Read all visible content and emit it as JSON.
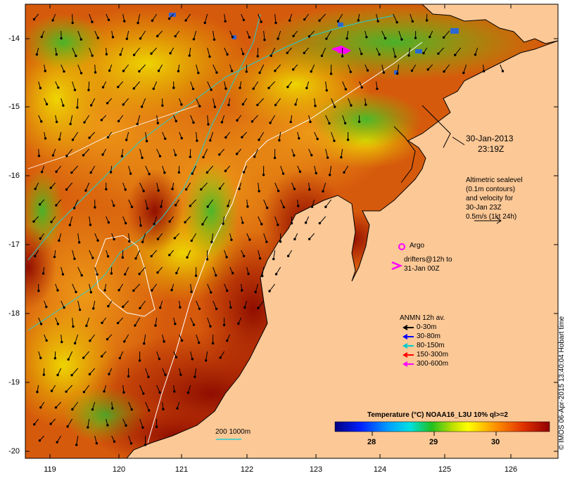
{
  "map": {
    "date": "30-Jan-2013",
    "time": "23:19Z",
    "altimetry_note": [
      "Altimetric sealevel",
      "(0.1m contours)",
      "and velocity for",
      "30-Jan 23Z",
      "0.5m/s (1kt 24h)"
    ],
    "argo_label": "Argo",
    "drifters_label": [
      "drifters@12h to",
      "31-Jan 00Z"
    ],
    "anmn": {
      "title": "ANMN 12h av.",
      "items": [
        {
          "label": "0-30m",
          "color": "#000000"
        },
        {
          "label": "30-80m",
          "color": "#0000ff"
        },
        {
          "label": "80-150m",
          "color": "#00cccc"
        },
        {
          "label": "150-300m",
          "color": "#ff0000"
        },
        {
          "label": "300-600m",
          "color": "#ff00ff"
        }
      ]
    },
    "isobath_label": "200  1000m",
    "colorbar": {
      "title": "Temperature (°C) NOAA16_L3U 10% ql>=2",
      "ticks": [
        "28",
        "29",
        "30"
      ],
      "range": [
        27.4,
        30.8
      ]
    },
    "credit": "© IMOS 06-Apr-2015 13:40:04 Hobart time",
    "lon_ticks": [
      "119",
      "120",
      "121",
      "122",
      "123",
      "124",
      "125",
      "126"
    ],
    "lat_ticks": [
      "-14",
      "-15",
      "-16",
      "-17",
      "-18",
      "-19",
      "-20"
    ],
    "colors": {
      "land": "#fcc896",
      "sst_dark": "#a01000",
      "sst_mid": "#d65a0c",
      "sst_warm": "#e68a14",
      "sst_yellow": "#f0e000",
      "sst_green": "#20c020",
      "argo": "#ff00ff"
    }
  }
}
